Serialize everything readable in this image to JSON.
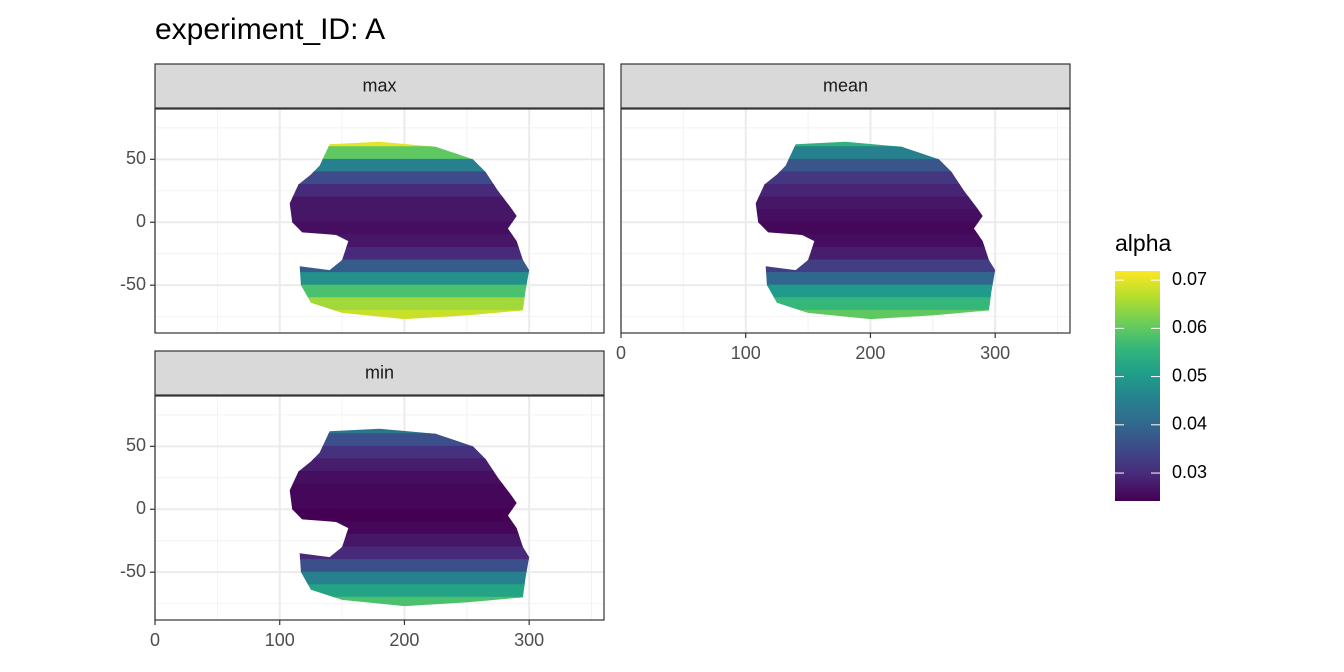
{
  "chart_data": {
    "type": "raster",
    "title": "experiment_ID: A",
    "xlim": [
      0,
      360
    ],
    "xticks": [
      0,
      100,
      200,
      300
    ],
    "ylim": [
      -88,
      90
    ],
    "yticks": [
      -50,
      0,
      50
    ],
    "grid": true,
    "y": [
      65,
      55,
      45,
      35,
      25,
      15,
      5,
      -5,
      -15,
      -25,
      -35,
      -45,
      -55,
      -65,
      -75
    ],
    "panels": [
      {
        "title": "max",
        "values": [
          0.07,
          0.06,
          0.045,
          0.035,
          0.03,
          0.027,
          0.027,
          0.026,
          0.027,
          0.03,
          0.038,
          0.048,
          0.058,
          0.065,
          0.068
        ]
      },
      {
        "title": "mean",
        "values": [
          0.055,
          0.045,
          0.037,
          0.032,
          0.029,
          0.027,
          0.026,
          0.025,
          0.026,
          0.028,
          0.033,
          0.04,
          0.05,
          0.056,
          0.06
        ]
      },
      {
        "title": "min",
        "values": [
          0.043,
          0.036,
          0.031,
          0.028,
          0.026,
          0.025,
          0.025,
          0.024,
          0.025,
          0.027,
          0.03,
          0.036,
          0.045,
          0.052,
          0.058
        ]
      }
    ],
    "colorbar": {
      "title": "alpha",
      "limits": [
        0.0242,
        0.0719
      ],
      "ticks": [
        0.03,
        0.04,
        0.05,
        0.06,
        0.07
      ]
    }
  }
}
